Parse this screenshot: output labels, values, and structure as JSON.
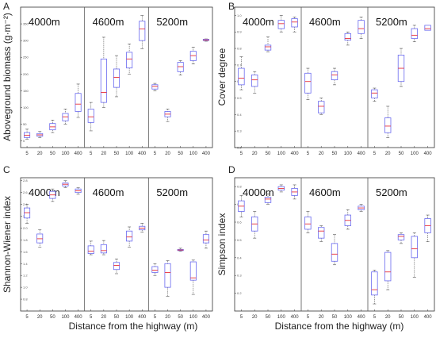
{
  "chart_data": [
    {
      "type": "box",
      "panel": "A",
      "ylabel": "Aboveground biomass (g·m⁻²)",
      "xlabel": "Distance from the highway (m)",
      "ylim": [
        -20,
        400
      ],
      "yticks": [
        "0",
        "50",
        "100",
        "150",
        "200",
        "250",
        "300",
        "350"
      ],
      "groups": [
        "4000m",
        "4600m",
        "5200m"
      ],
      "categories": [
        "5",
        "20",
        "50",
        "100",
        "400"
      ],
      "boxes": [
        [
          {
            "min": 5,
            "q1": 10,
            "median": 17,
            "q3": 25,
            "max": 35
          },
          {
            "min": 10,
            "q1": 14,
            "median": 18,
            "q3": 22,
            "max": 28
          },
          {
            "min": 25,
            "q1": 33,
            "median": 42,
            "q3": 52,
            "max": 62
          },
          {
            "min": 50,
            "q1": 60,
            "median": 72,
            "q3": 82,
            "max": 95
          },
          {
            "min": 70,
            "q1": 88,
            "median": 110,
            "q3": 142,
            "max": 170
          }
        ],
        [
          {
            "min": 30,
            "q1": 55,
            "median": 72,
            "q3": 95,
            "max": 115
          },
          {
            "min": 100,
            "q1": 115,
            "median": 145,
            "q3": 245,
            "max": 310
          },
          {
            "min": 132,
            "q1": 160,
            "median": 190,
            "q3": 215,
            "max": 255
          },
          {
            "min": 200,
            "q1": 218,
            "median": 245,
            "q3": 265,
            "max": 290
          },
          {
            "min": 275,
            "q1": 300,
            "median": 335,
            "q3": 358,
            "max": 375
          }
        ],
        [
          {
            "min": 150,
            "q1": 155,
            "median": 163,
            "q3": 168,
            "max": 172
          },
          {
            "min": 58,
            "q1": 72,
            "median": 80,
            "q3": 88,
            "max": 95
          },
          {
            "min": 197,
            "q1": 207,
            "median": 222,
            "q3": 235,
            "max": 240
          },
          {
            "min": 230,
            "q1": 240,
            "median": 255,
            "q3": 268,
            "max": 280
          },
          {
            "min": 298,
            "q1": 300,
            "median": 302,
            "q3": 304,
            "max": 305
          }
        ]
      ]
    },
    {
      "type": "box",
      "panel": "B",
      "ylabel": "Cover degree",
      "xlabel": "Distance from the highway (m)",
      "ylim": [
        0.2,
        1.05
      ],
      "yticks": [
        "0.2",
        "0.3",
        "0.4",
        "0.5",
        "0.6",
        "0.7",
        "0.8",
        "0.9",
        "1.0"
      ],
      "groups": [
        "4000m",
        "4600m",
        "5200m"
      ],
      "categories": [
        "5",
        "20",
        "50",
        "100",
        "400"
      ],
      "boxes": [
        [
          {
            "min": 0.55,
            "q1": 0.58,
            "median": 0.62,
            "q3": 0.68,
            "max": 0.75
          },
          {
            "min": 0.53,
            "q1": 0.57,
            "median": 0.61,
            "q3": 0.64,
            "max": 0.66
          },
          {
            "min": 0.78,
            "q1": 0.79,
            "median": 0.81,
            "q3": 0.82,
            "max": 0.87
          },
          {
            "min": 0.9,
            "q1": 0.92,
            "median": 0.95,
            "q3": 0.97,
            "max": 1.0
          },
          {
            "min": 0.9,
            "q1": 0.93,
            "median": 0.96,
            "q3": 0.98,
            "max": 0.99
          }
        ],
        [
          {
            "min": 0.49,
            "q1": 0.53,
            "median": 0.6,
            "q3": 0.65,
            "max": 0.68
          },
          {
            "min": 0.4,
            "q1": 0.41,
            "median": 0.45,
            "q3": 0.48,
            "max": 0.5
          },
          {
            "min": 0.58,
            "q1": 0.61,
            "median": 0.64,
            "q3": 0.66,
            "max": 0.68
          },
          {
            "min": 0.82,
            "q1": 0.85,
            "median": 0.86,
            "q3": 0.89,
            "max": 0.9
          },
          {
            "min": 0.86,
            "q1": 0.89,
            "median": 0.92,
            "q3": 0.97,
            "max": 0.99
          }
        ],
        [
          {
            "min": 0.48,
            "q1": 0.5,
            "median": 0.53,
            "q3": 0.55,
            "max": 0.56
          },
          {
            "min": 0.26,
            "q1": 0.29,
            "median": 0.33,
            "q3": 0.38,
            "max": 0.45
          },
          {
            "min": 0.57,
            "q1": 0.6,
            "median": 0.68,
            "q3": 0.76,
            "max": 0.8
          },
          {
            "min": 0.84,
            "q1": 0.86,
            "median": 0.88,
            "q3": 0.92,
            "max": 0.94
          },
          {
            "min": 0.91,
            "q1": 0.91,
            "median": 0.92,
            "q3": 0.94,
            "max": 0.94
          }
        ]
      ]
    },
    {
      "type": "box",
      "panel": "C",
      "ylabel": "Shannon-Wiener index",
      "xlabel": "Distance from the highway (m)",
      "ylim": [
        0.6,
        2.85
      ],
      "yticks": [
        "0.8",
        "1.0",
        "1.2",
        "1.4",
        "1.6",
        "1.8",
        "2.0",
        "2.2",
        "2.4",
        "2.6",
        "2.8"
      ],
      "groups": [
        "4000m",
        "4600m",
        "5200m"
      ],
      "categories": [
        "5",
        "20",
        "50",
        "100",
        "400"
      ],
      "boxes": [
        [
          {
            "min": 2.08,
            "q1": 2.17,
            "median": 2.26,
            "q3": 2.34,
            "max": 2.4
          },
          {
            "min": 1.68,
            "q1": 1.75,
            "median": 1.82,
            "q3": 1.9,
            "max": 1.97
          },
          {
            "min": 2.45,
            "q1": 2.5,
            "median": 2.56,
            "q3": 2.62,
            "max": 2.66
          },
          {
            "min": 2.68,
            "q1": 2.71,
            "median": 2.74,
            "q3": 2.76,
            "max": 2.8
          },
          {
            "min": 2.57,
            "q1": 2.6,
            "median": 2.63,
            "q3": 2.66,
            "max": 2.68
          }
        ],
        [
          {
            "min": 1.55,
            "q1": 1.57,
            "median": 1.61,
            "q3": 1.7,
            "max": 1.78
          },
          {
            "min": 1.55,
            "q1": 1.58,
            "median": 1.62,
            "q3": 1.72,
            "max": 1.79
          },
          {
            "min": 1.23,
            "q1": 1.3,
            "median": 1.37,
            "q3": 1.42,
            "max": 1.48
          },
          {
            "min": 1.68,
            "q1": 1.78,
            "median": 1.85,
            "q3": 1.95,
            "max": 2.02
          },
          {
            "min": 1.93,
            "q1": 1.97,
            "median": 2.0,
            "q3": 2.03,
            "max": 2.08
          }
        ],
        [
          {
            "min": 1.2,
            "q1": 1.25,
            "median": 1.29,
            "q3": 1.35,
            "max": 1.4
          },
          {
            "min": 0.85,
            "q1": 1.0,
            "median": 1.25,
            "q3": 1.4,
            "max": 1.45
          },
          {
            "min": 1.61,
            "q1": 1.62,
            "median": 1.63,
            "q3": 1.64,
            "max": 1.66
          },
          {
            "min": 0.88,
            "q1": 1.12,
            "median": 1.16,
            "q3": 1.43,
            "max": 1.46
          },
          {
            "min": 1.66,
            "q1": 1.75,
            "median": 1.8,
            "q3": 1.89,
            "max": 1.95
          }
        ]
      ]
    },
    {
      "type": "box",
      "panel": "D",
      "ylabel": "Simpson index",
      "xlabel": "Distance from the highway (m)",
      "ylim": [
        0.1,
        0.85
      ],
      "yticks": [
        "0.2",
        "0.3",
        "0.4",
        "0.5",
        "0.6",
        "0.7",
        "0.8"
      ],
      "groups": [
        "4000m",
        "4600m",
        "5200m"
      ],
      "categories": [
        "5",
        "20",
        "50",
        "100",
        "400"
      ],
      "boxes": [
        [
          {
            "min": 0.63,
            "q1": 0.66,
            "median": 0.69,
            "q3": 0.72,
            "max": 0.75
          },
          {
            "min": 0.51,
            "q1": 0.55,
            "median": 0.59,
            "q3": 0.63,
            "max": 0.66
          },
          {
            "min": 0.7,
            "q1": 0.71,
            "median": 0.73,
            "q3": 0.74,
            "max": 0.76
          },
          {
            "min": 0.77,
            "q1": 0.78,
            "median": 0.79,
            "q3": 0.8,
            "max": 0.81
          },
          {
            "min": 0.73,
            "q1": 0.75,
            "median": 0.77,
            "q3": 0.79,
            "max": 0.81
          }
        ],
        [
          {
            "min": 0.54,
            "q1": 0.56,
            "median": 0.59,
            "q3": 0.63,
            "max": 0.66
          },
          {
            "min": 0.49,
            "q1": 0.51,
            "median": 0.55,
            "q3": 0.57,
            "max": 0.58
          },
          {
            "min": 0.36,
            "q1": 0.38,
            "median": 0.42,
            "q3": 0.48,
            "max": 0.53
          },
          {
            "min": 0.56,
            "q1": 0.58,
            "median": 0.61,
            "q3": 0.64,
            "max": 0.67
          },
          {
            "min": 0.66,
            "q1": 0.67,
            "median": 0.68,
            "q3": 0.69,
            "max": 0.7
          }
        ],
        [
          {
            "min": 0.14,
            "q1": 0.19,
            "median": 0.22,
            "q3": 0.32,
            "max": 0.33
          },
          {
            "min": 0.22,
            "q1": 0.27,
            "median": 0.32,
            "q3": 0.43,
            "max": 0.44
          },
          {
            "min": 0.48,
            "q1": 0.5,
            "median": 0.52,
            "q3": 0.53,
            "max": 0.54
          },
          {
            "min": 0.29,
            "q1": 0.4,
            "median": 0.45,
            "q3": 0.52,
            "max": 0.54
          },
          {
            "min": 0.49,
            "q1": 0.54,
            "median": 0.58,
            "q3": 0.62,
            "max": 0.64
          }
        ]
      ]
    }
  ],
  "colors": {
    "box": "#6a6af0",
    "median": "#e8323c",
    "whisker": "#555555",
    "axis": "#333333",
    "separator": "#555555"
  }
}
